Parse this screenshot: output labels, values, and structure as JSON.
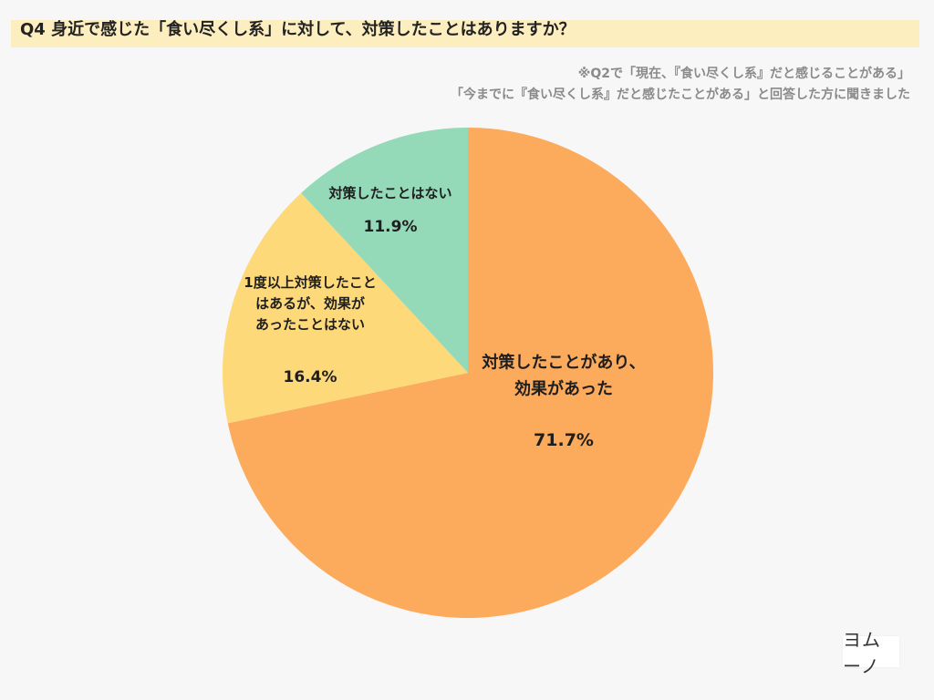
{
  "page": {
    "title": "Q4 身近で感じた「食い尽くし系」に対して、対策したことはありますか？",
    "note_line1": "※Q2で「現在、『食い尽くし系』だと感じることがある」",
    "note_line2": "「今までに『食い尽くし系』だと感じたことがある」と回答した方に聞きました",
    "logo_text": "ヨムーノ"
  },
  "chart_data": {
    "type": "pie",
    "title": "Q4 身近で感じた「食い尽くし系」に対して、対策したことはありますか？",
    "start": "12 o'clock",
    "direction": "clockwise",
    "slices": [
      {
        "label_lines": [
          "対策したことがあり、",
          "効果があった"
        ],
        "value": 71.7,
        "display": "71.7%",
        "color": "#fcaa5c"
      },
      {
        "label_lines": [
          "1度以上対策したこと",
          "はあるが、効果が",
          "あったことはない"
        ],
        "value": 16.4,
        "display": "16.4%",
        "color": "#fdd97a"
      },
      {
        "label_lines": [
          "対策したことはない"
        ],
        "value": 11.9,
        "display": "11.9%",
        "color": "#94dab9"
      }
    ],
    "legend": "none"
  }
}
